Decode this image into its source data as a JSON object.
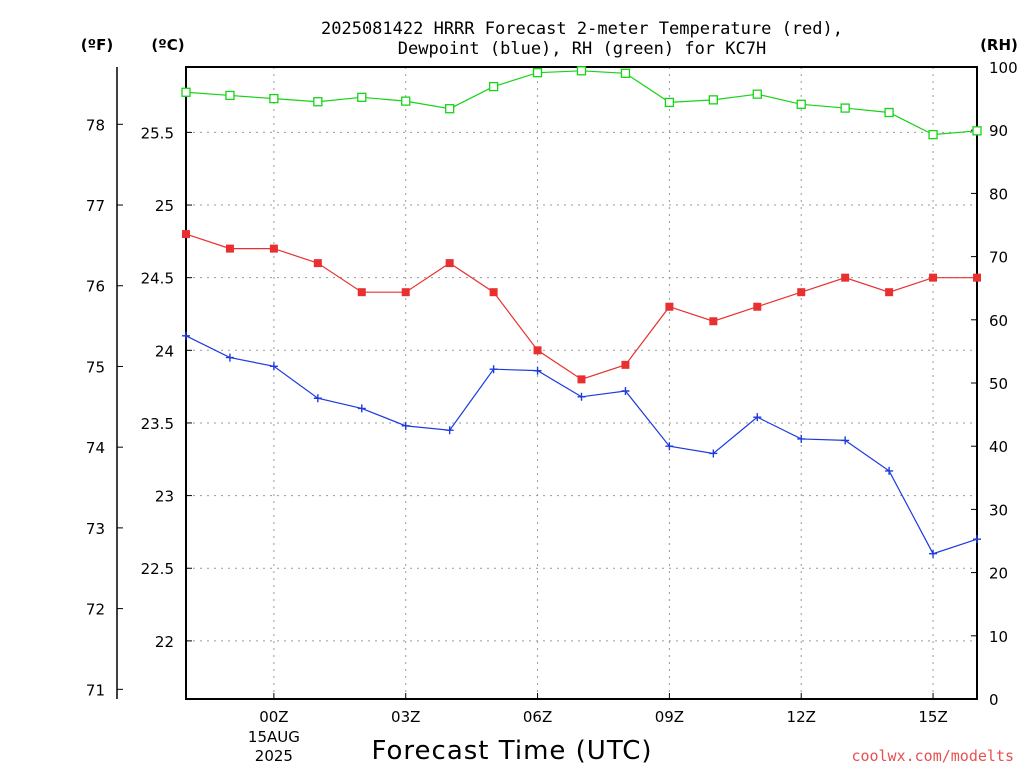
{
  "chart_data": {
    "type": "line",
    "title_lines": [
      "2025081422 HRRR Forecast 2-meter Temperature (red),",
      "Dewpoint (blue), RH (green) for KC7H"
    ],
    "xlabel": "Forecast Time (UTC)",
    "units": {
      "fahrenheit": "(ºF)",
      "celsius": "(ºC)",
      "rh": "(RH)"
    },
    "x_ticks": [
      {
        "hour": 2,
        "label": "00Z"
      },
      {
        "hour": 5,
        "label": "03Z"
      },
      {
        "hour": 8,
        "label": "06Z"
      },
      {
        "hour": 11,
        "label": "09Z"
      },
      {
        "hour": 14,
        "label": "12Z"
      },
      {
        "hour": 17,
        "label": "15Z"
      }
    ],
    "date_label": [
      "15AUG",
      "2025"
    ],
    "xlim": [
      0,
      18
    ],
    "celsius_axis": {
      "ylim": [
        21.6,
        25.95
      ],
      "ticks": [
        "22",
        "22.5",
        "23",
        "23.5",
        "24",
        "24.5",
        "25",
        "25.5"
      ]
    },
    "fahrenheit_axis": {
      "ticks": [
        "71",
        "72",
        "73",
        "74",
        "75",
        "76",
        "77",
        "78"
      ]
    },
    "rh_axis": {
      "ylim": [
        0,
        100
      ],
      "ticks": [
        "0",
        "10",
        "20",
        "30",
        "40",
        "50",
        "60",
        "70",
        "80",
        "90",
        "100"
      ]
    },
    "x": [
      0,
      1,
      2,
      3,
      4,
      5,
      6,
      7,
      8,
      9,
      10,
      11,
      12,
      13,
      14,
      15,
      16,
      17,
      18
    ],
    "series": [
      {
        "name": "Temperature",
        "axis": "celsius",
        "color": "#e83030",
        "marker": "square-filled",
        "values": [
          24.8,
          24.7,
          24.7,
          24.6,
          24.4,
          24.4,
          24.6,
          24.4,
          24.0,
          23.8,
          23.9,
          24.3,
          24.2,
          24.3,
          24.4,
          24.5,
          24.4,
          24.5,
          24.5
        ]
      },
      {
        "name": "Dewpoint",
        "axis": "celsius",
        "color": "#1c3ae0",
        "marker": "plus",
        "values": [
          24.1,
          23.95,
          23.89,
          23.67,
          23.6,
          23.48,
          23.45,
          23.87,
          23.86,
          23.68,
          23.72,
          23.34,
          23.29,
          23.54,
          23.39,
          23.38,
          23.17,
          22.6,
          22.7
        ]
      },
      {
        "name": "RH",
        "axis": "rh",
        "color": "#16d416",
        "marker": "square-open",
        "values": [
          96,
          95.5,
          95,
          94.5,
          95.2,
          94.6,
          93.4,
          96.9,
          99.1,
          99.4,
          99,
          94.4,
          94.8,
          95.7,
          94.1,
          93.5,
          92.8,
          89.3,
          89.9
        ]
      }
    ]
  },
  "credit": {
    "text": "coolwx.com/modelts",
    "color": "#e85050"
  }
}
